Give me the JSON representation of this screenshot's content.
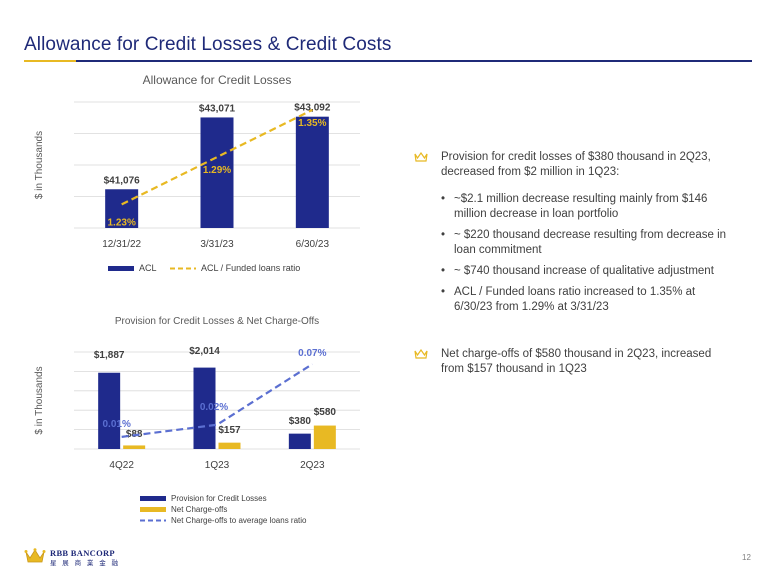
{
  "page": {
    "title": "Allowance for Credit Losses & Credit Costs",
    "page_number": "12"
  },
  "chart_data": [
    {
      "type": "bar",
      "title": "Allowance for Credit Losses",
      "ylabel": "$ in Thousands",
      "categories": [
        "12/31/22",
        "3/31/23",
        "6/30/23"
      ],
      "series": [
        {
          "name": "ACL",
          "kind": "bar",
          "values": [
            41076,
            43071,
            43092
          ],
          "labels": [
            "$41,076",
            "$43,071",
            "$43,092"
          ],
          "color": "#1f2a8c"
        },
        {
          "name": "ACL / Funded loans ratio",
          "kind": "line-dashed",
          "values": [
            1.23,
            1.29,
            1.35
          ],
          "labels": [
            "1.23%",
            "1.29%",
            "1.35%"
          ],
          "color": "#e8b923"
        }
      ],
      "ylim": [
        40000,
        43500
      ],
      "ratio_lim": [
        1.2,
        1.36
      ],
      "grid": true,
      "legend": "bottom"
    },
    {
      "type": "bar",
      "title": "Provision for Credit Losses & Net Charge-Offs",
      "ylabel": "$ in Thousands",
      "categories": [
        "4Q22",
        "1Q23",
        "2Q23"
      ],
      "series": [
        {
          "name": "Provision for Credit Losses",
          "kind": "bar",
          "values": [
            1887,
            2014,
            380
          ],
          "labels": [
            "$1,887",
            "$2,014",
            "$380"
          ],
          "color": "#1f2a8c"
        },
        {
          "name": "Net Charge-offs",
          "kind": "bar",
          "values": [
            88,
            157,
            580
          ],
          "labels": [
            "$88",
            "$157",
            "$580"
          ],
          "color": "#e8b923"
        },
        {
          "name": "Net Charge-offs to average loans ratio",
          "kind": "line-dashed",
          "values": [
            0.01,
            0.02,
            0.07
          ],
          "labels": [
            "0.01%",
            "0.02%",
            "0.07%"
          ],
          "color": "#5b6fd1"
        }
      ],
      "ylim": [
        0,
        2400
      ],
      "ratio_lim": [
        0,
        0.08
      ],
      "grid": true,
      "legend": "bottom"
    }
  ],
  "commentary": {
    "bullet1": "Provision for credit losses of $380 thousand in 2Q23, decreased from $2 million in 1Q23:",
    "sub_bullets": [
      "~$2.1 million decrease resulting mainly from $146 million decrease in loan portfolio",
      "~ $220 thousand decrease resulting from decrease in loan commitment",
      "~ $740 thousand increase of qualitative adjustment",
      "ACL / Funded loans ratio increased to 1.35% at 6/30/23 from 1.29% at 3/31/23"
    ],
    "sub_marker": "•",
    "bullet2": "Net charge-offs of $580 thousand in 2Q23, increased from $157 thousand in 1Q23"
  },
  "footer": {
    "logo_name": "RBB BANCORP",
    "logo_chinese": "星 展 商 業 金 融"
  },
  "colors": {
    "navy": "#1f2a78",
    "bar_navy": "#1f2a8c",
    "gold": "#e8b923",
    "line_blue": "#5b6fd1"
  }
}
